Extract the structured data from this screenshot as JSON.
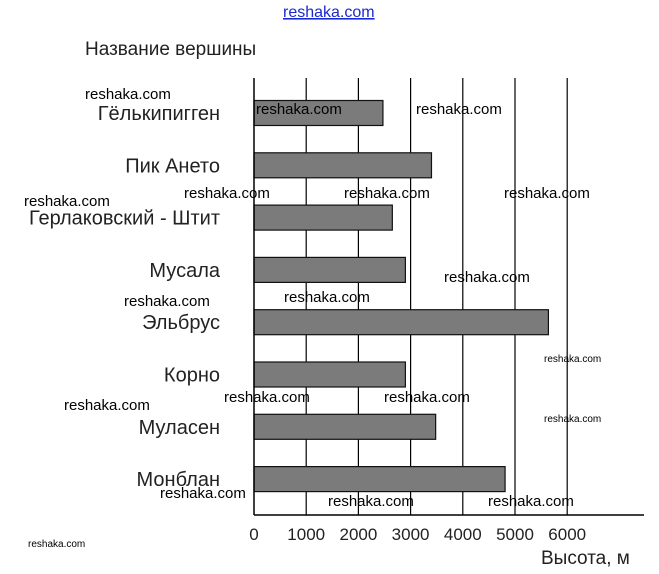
{
  "header": {
    "site_link": "reshaka.com"
  },
  "chart_data": {
    "type": "bar",
    "orientation": "horizontal",
    "title": "",
    "ylabel": "Название вершины",
    "xlabel": "Высота, м",
    "categories": [
      "Гёлькипигген",
      "Пик Ането",
      "Герлаковский - Штит",
      "Мусала",
      "Эльбрус",
      "Корно",
      "Муласен",
      "Монблан"
    ],
    "values": [
      2470,
      3400,
      2650,
      2900,
      5640,
      2900,
      3480,
      4810
    ],
    "xlim": [
      0,
      7500
    ],
    "xticks": [
      0,
      1000,
      2000,
      3000,
      4000,
      5000,
      6000
    ],
    "xtick_labels": [
      "0",
      "1000",
      "2000",
      "3000",
      "4000",
      "5000",
      "6000"
    ],
    "grid": "vertical",
    "bar_color": "#7b7b7b"
  },
  "watermarks": [
    "reshaka.com",
    "reshaka.com",
    "reshaka.com",
    "reshaka.com",
    "reshaka.com",
    "reshaka.com",
    "reshaka.com",
    "reshaka.com",
    "reshaka.com",
    "reshaka.com",
    "reshaka.com",
    "reshaka.com",
    "reshaka.com",
    "reshaka.com",
    "reshaka.com",
    "reshaka.com",
    "reshaka.com",
    "reshaka.com",
    "reshaka.com"
  ]
}
